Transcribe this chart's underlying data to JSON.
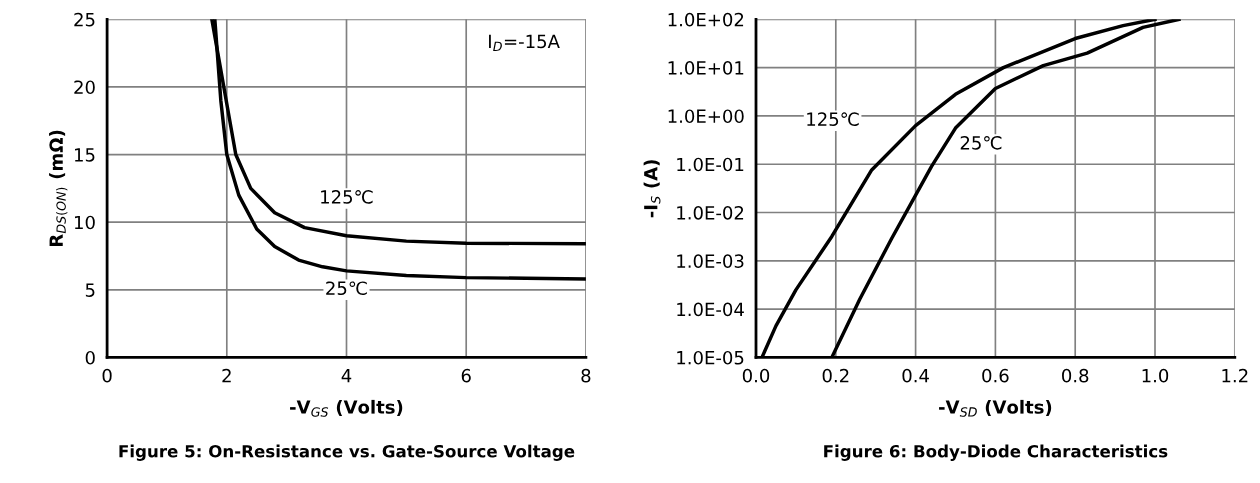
{
  "chart_data": [
    {
      "type": "line",
      "title": "Figure 5: On-Resistance vs. Gate-Source Voltage",
      "xlabel": "-V$_{GS}$ (Volts)",
      "ylabel": "R$_{DS(ON)}$ (mΩ)",
      "xlim": [
        0,
        8
      ],
      "xticks": [
        0,
        2,
        4,
        6,
        8
      ],
      "ylim": [
        0,
        25
      ],
      "yticks": [
        0,
        5,
        10,
        15,
        20,
        25
      ],
      "grid": true,
      "legend": false,
      "series": [
        {
          "color": "#000000",
          "x": [
            1.75,
            1.87,
            2.05,
            2.15,
            2.4,
            2.8,
            3.3,
            4,
            5,
            6,
            8
          ],
          "values": [
            25,
            22,
            17.5,
            15,
            12.5,
            10.7,
            9.6,
            9.0,
            8.6,
            8.45,
            8.4
          ]
        },
        {
          "color": "#000000",
          "x": [
            1.8,
            1.9,
            2.0,
            2.2,
            2.5,
            2.8,
            3.2,
            3.6,
            4,
            5,
            6,
            7,
            8
          ],
          "values": [
            25,
            19,
            15,
            12,
            9.5,
            8.2,
            7.2,
            6.7,
            6.4,
            6.05,
            5.9,
            5.85,
            5.8
          ]
        }
      ],
      "annotations": [
        "I$_{D}$=-15A",
        "125℃",
        "25℃"
      ]
    },
    {
      "type": "line",
      "title": "Figure 6: Body-Diode Characteristics",
      "xlabel": "-V$_{SD}$ (Volts)",
      "ylabel": "-I$_{S}$ (A)",
      "log": "y",
      "xlim": [
        0,
        1.2
      ],
      "xticks": [
        {
          "value": 0,
          "label": "0.0"
        },
        0.2,
        0.4,
        0.6,
        0.8,
        {
          "value": 1,
          "label": "1.0"
        },
        {
          "value": 1.2,
          "label": "1.2"
        }
      ],
      "ylim": [
        1e-05,
        100
      ],
      "yticks": [
        {
          "value": 1e-05,
          "label": "1.0E-05"
        },
        {
          "value": 0.0001,
          "label": "1.0E-04"
        },
        {
          "value": 0.001,
          "label": "1.0E-03"
        },
        {
          "value": 0.01,
          "label": "1.0E-02"
        },
        {
          "value": 0.1,
          "label": "1.0E-01"
        },
        {
          "value": 1,
          "label": "1.0E+00"
        },
        {
          "value": 10,
          "label": "1.0E+01"
        },
        {
          "value": 100,
          "label": "1.0E+02"
        }
      ],
      "grid": true,
      "legend": false,
      "series": [
        {
          "color": "#000000",
          "x": [
            0.015,
            0.05,
            0.1,
            0.19,
            0.29,
            0.4,
            0.5,
            0.62,
            0.8,
            0.92,
            1.0
          ],
          "values": [
            1e-05,
            4.5e-05,
            0.00025,
            0.0032,
            0.076,
            0.63,
            2.8,
            10,
            40,
            74,
            100
          ]
        },
        {
          "color": "#000000",
          "x": [
            0.19,
            0.26,
            0.34,
            0.44,
            0.5,
            0.6,
            0.72,
            0.83,
            0.97,
            1.06
          ],
          "values": [
            1e-05,
            0.00016,
            0.0029,
            0.09,
            0.56,
            3.7,
            11,
            20,
            68,
            100
          ]
        }
      ],
      "annotations": [
        "125℃",
        "25℃"
      ]
    }
  ]
}
